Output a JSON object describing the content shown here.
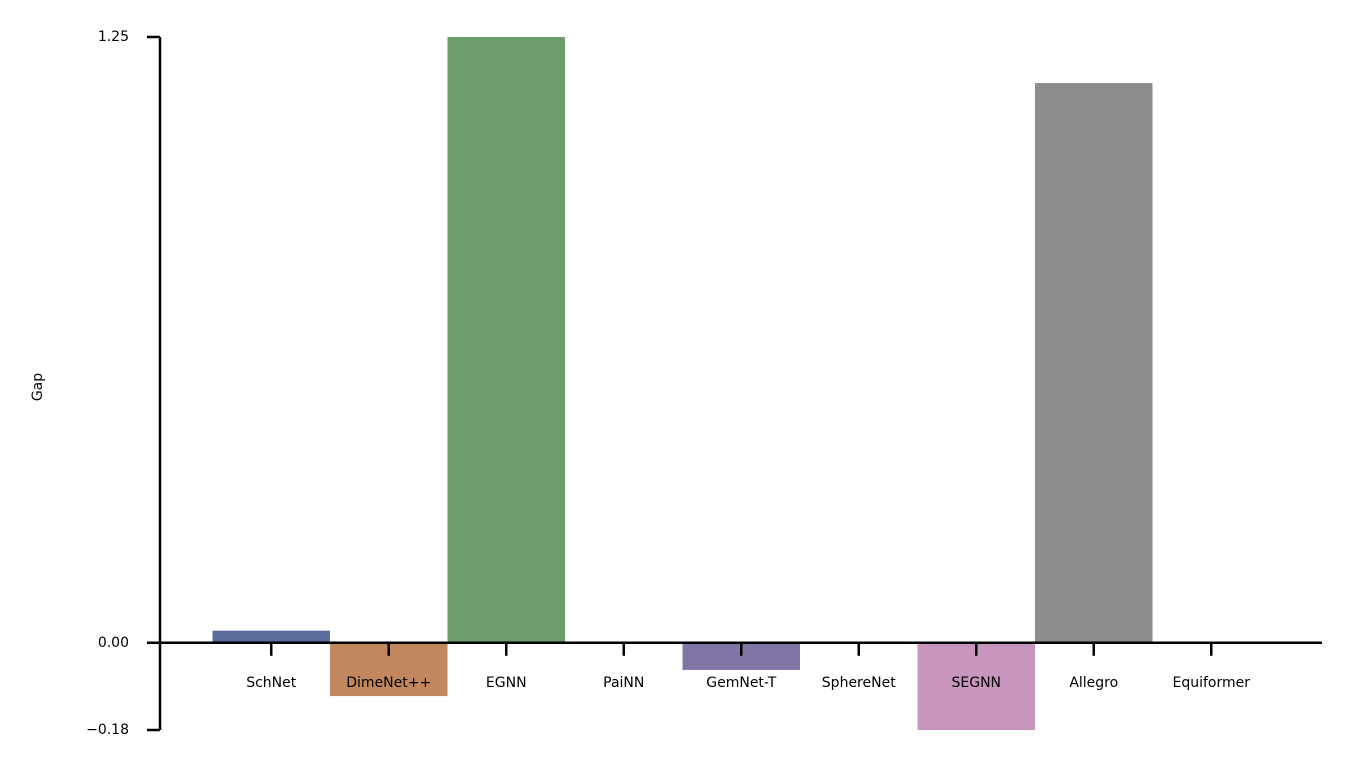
{
  "chart_data": {
    "type": "bar",
    "ylabel": "Gap",
    "categories": [
      "SchNet",
      "DimeNet++",
      "EGNN",
      "PaiNN",
      "GemNet-T",
      "SphereNet",
      "SEGNN",
      "Allegro",
      "Equiformer"
    ],
    "values": [
      0.025,
      -0.11,
      1.25,
      0.002,
      -0.056,
      0.001,
      -0.18,
      1.155,
      0
    ],
    "colors": [
      "#5b6d9c",
      "#c1875f",
      "#6b9c6e",
      "#b5524f",
      "#8175a6",
      "#8b6b57",
      "#c795bd",
      "#8c8c8c",
      "#c9b56e"
    ],
    "ylim": [
      -0.18,
      1.25
    ],
    "yticks": [
      {
        "value": -0.18,
        "label": "−0.18"
      },
      {
        "value": 0,
        "label": "0.00"
      },
      1.25
    ],
    "grid": false
  }
}
